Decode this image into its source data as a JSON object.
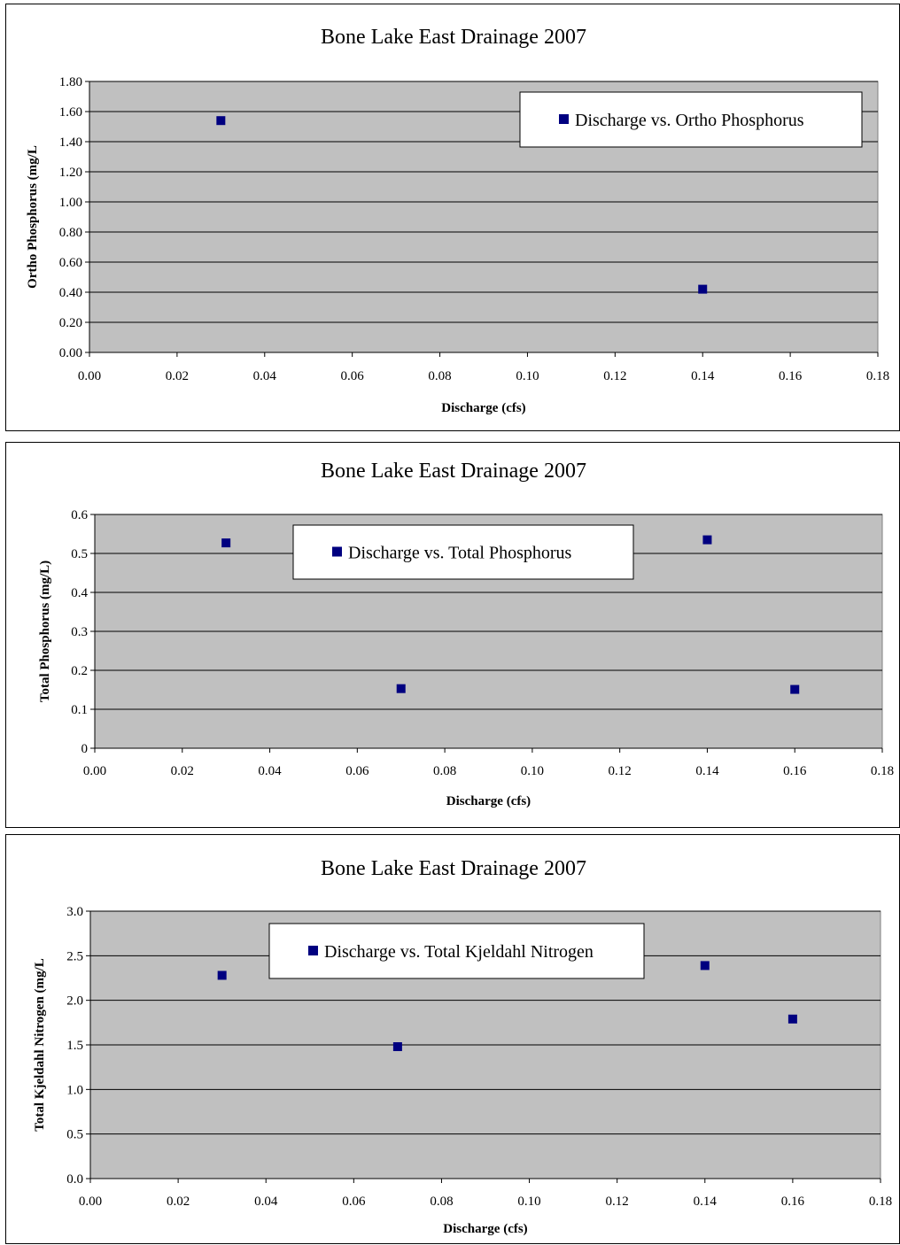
{
  "chart_data": [
    {
      "type": "scatter",
      "title": "Bone Lake East Drainage 2007",
      "xlabel": "Discharge (cfs)",
      "ylabel": "Ortho Phosphorus (mg/L",
      "xlim": [
        0,
        0.18
      ],
      "ylim": [
        0,
        1.8
      ],
      "xticks": [
        "0.00",
        "0.02",
        "0.04",
        "0.06",
        "0.08",
        "0.10",
        "0.12",
        "0.14",
        "0.16",
        "0.18"
      ],
      "yticks": [
        "0.00",
        "0.20",
        "0.40",
        "0.60",
        "0.80",
        "1.00",
        "1.20",
        "1.40",
        "1.60",
        "1.80"
      ],
      "grid": true,
      "legend_position": "top-right",
      "series": [
        {
          "name": "Discharge vs. Ortho Phosphorus",
          "color": "#000080",
          "x": [
            0.03,
            0.14
          ],
          "y": [
            1.54,
            0.42
          ]
        }
      ]
    },
    {
      "type": "scatter",
      "title": "Bone Lake East Drainage 2007",
      "xlabel": "Discharge (cfs)",
      "ylabel": "Total Phosphorus (mg/L)",
      "xlim": [
        0,
        0.18
      ],
      "ylim": [
        0,
        0.6
      ],
      "xticks": [
        "0.00",
        "0.02",
        "0.04",
        "0.06",
        "0.08",
        "0.10",
        "0.12",
        "0.14",
        "0.16",
        "0.18"
      ],
      "yticks": [
        "0",
        "0.1",
        "0.2",
        "0.3",
        "0.4",
        "0.5",
        "0.6"
      ],
      "grid": true,
      "legend_position": "top-center",
      "series": [
        {
          "name": "Discharge vs. Total Phosphorus",
          "color": "#000080",
          "x": [
            0.03,
            0.07,
            0.14,
            0.16
          ],
          "y": [
            0.527,
            0.153,
            0.535,
            0.151
          ]
        }
      ]
    },
    {
      "type": "scatter",
      "title": "Bone Lake East Drainage 2007",
      "xlabel": "Discharge (cfs)",
      "ylabel": "Total Kjeldahl Nitrogen (mg/L",
      "xlim": [
        0,
        0.18
      ],
      "ylim": [
        0,
        3.0
      ],
      "xticks": [
        "0.00",
        "0.02",
        "0.04",
        "0.06",
        "0.08",
        "0.10",
        "0.12",
        "0.14",
        "0.16",
        "0.18"
      ],
      "yticks": [
        "0.0",
        "0.5",
        "1.0",
        "1.5",
        "2.0",
        "2.5",
        "3.0"
      ],
      "grid": true,
      "legend_position": "top-center",
      "series": [
        {
          "name": "Discharge vs. Total Kjeldahl Nitrogen",
          "color": "#000080",
          "x": [
            0.03,
            0.07,
            0.14,
            0.16
          ],
          "y": [
            2.28,
            1.48,
            2.39,
            1.79
          ]
        }
      ]
    }
  ],
  "colors": {
    "plot_background": "#c0c0c0",
    "marker": "#000080",
    "gridline": "#000000"
  }
}
